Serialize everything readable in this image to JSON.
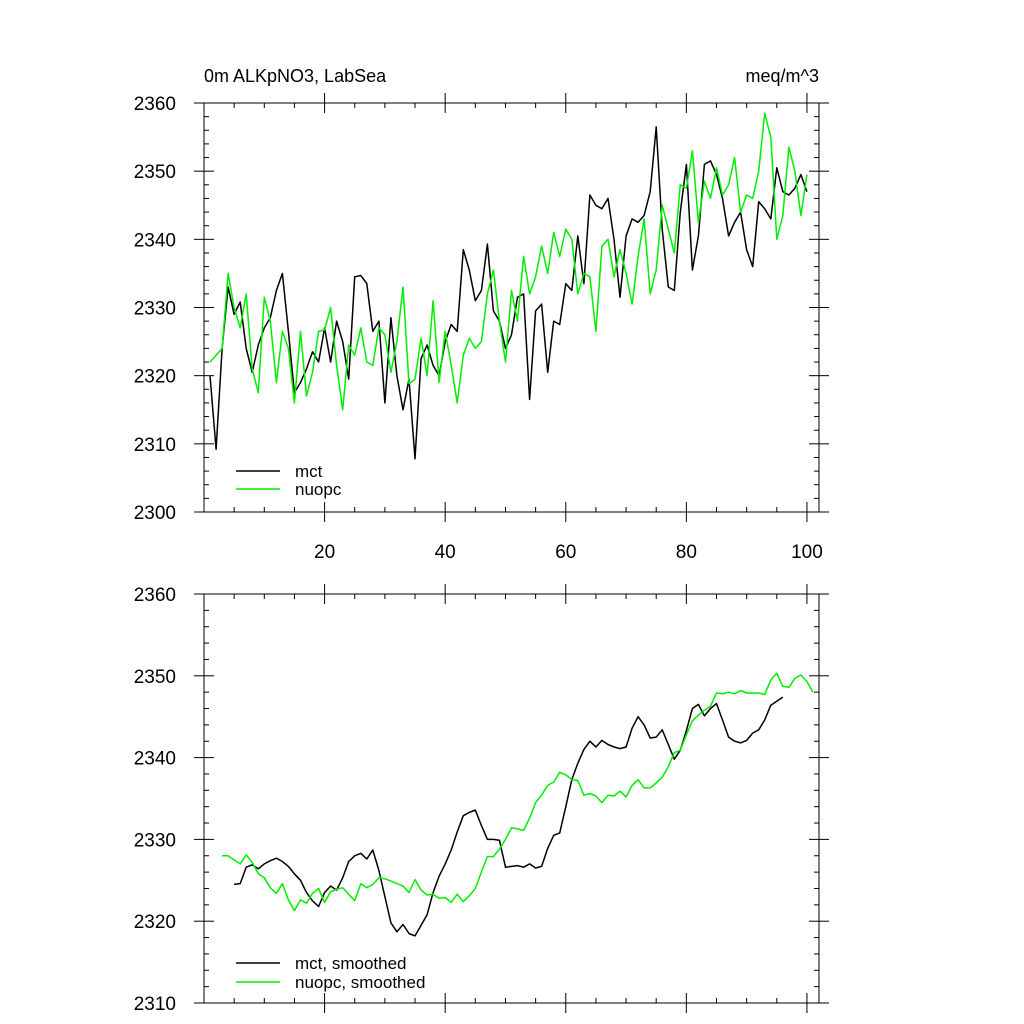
{
  "chart_data": [
    {
      "type": "line",
      "title": "0m ALKpNO3, LabSea",
      "units": "meq/m^3",
      "xlim": [
        0,
        102
      ],
      "ylim": [
        2300,
        2360
      ],
      "xticks": [
        20,
        40,
        60,
        80,
        100
      ],
      "yticks": [
        2300,
        2310,
        2320,
        2330,
        2340,
        2350,
        2360
      ],
      "legend_position": "bottom-left",
      "series": [
        {
          "name": "mct",
          "color": "#000000",
          "x_start": 1,
          "values": [
            2320.0,
            2309.2,
            2324.0,
            2333.0,
            2329.0,
            2330.8,
            2324.0,
            2320.5,
            2324.5,
            2327.0,
            2328.5,
            2332.5,
            2335.0,
            2326.5,
            2317.5,
            2319.0,
            2321.0,
            2323.5,
            2322.0,
            2327.0,
            2322.0,
            2328.0,
            2325.0,
            2319.5,
            2334.5,
            2334.7,
            2333.5,
            2326.5,
            2328.0,
            2316.0,
            2328.5,
            2320.0,
            2315.0,
            2319.5,
            2307.8,
            2322.5,
            2324.5,
            2321.5,
            2320.0,
            2325.0,
            2327.5,
            2326.5,
            2338.5,
            2335.5,
            2331.0,
            2332.5,
            2339.3,
            2329.5,
            2328.0,
            2324.0,
            2326.0,
            2331.5,
            2332.0,
            2316.5,
            2329.5,
            2330.5,
            2320.5,
            2328.0,
            2327.5,
            2333.5,
            2332.5,
            2340.5,
            2333.5,
            2346.5,
            2345.0,
            2344.5,
            2346.0,
            2340.0,
            2331.5,
            2340.5,
            2343.0,
            2342.5,
            2343.5,
            2347.0,
            2356.5,
            2341.5,
            2333.0,
            2332.5,
            2344.0,
            2351.0,
            2335.5,
            2340.5,
            2351.0,
            2351.5,
            2349.5,
            2346.0,
            2340.5,
            2342.5,
            2344.0,
            2338.5,
            2336.0,
            2345.5,
            2344.5,
            2343.0,
            2350.5,
            2347.0,
            2346.5,
            2347.5,
            2349.5,
            2347.0
          ]
        },
        {
          "name": "nuopc",
          "color": "#00ee00",
          "x_start": 1,
          "values": [
            2322.0,
            2323.0,
            2324.0,
            2335.0,
            2330.0,
            2327.0,
            2332.0,
            2321.0,
            2317.5,
            2331.5,
            2328.0,
            2319.0,
            2326.5,
            2324.0,
            2316.0,
            2326.5,
            2317.0,
            2320.5,
            2326.5,
            2326.7,
            2330.0,
            2321.5,
            2315.0,
            2324.5,
            2323.0,
            2327.0,
            2322.0,
            2321.5,
            2327.0,
            2326.0,
            2320.5,
            2325.0,
            2333.0,
            2318.8,
            2319.5,
            2325.5,
            2320.0,
            2331.0,
            2319.0,
            2326.5,
            2321.5,
            2316.0,
            2323.0,
            2325.5,
            2324.0,
            2325.0,
            2332.0,
            2335.5,
            2328.0,
            2322.0,
            2332.5,
            2328.0,
            2337.5,
            2332.0,
            2334.5,
            2339.0,
            2335.0,
            2341.0,
            2337.5,
            2341.5,
            2340.0,
            2332.0,
            2335.0,
            2334.5,
            2326.5,
            2339.0,
            2340.0,
            2334.5,
            2338.5,
            2335.0,
            2330.5,
            2337.5,
            2343.0,
            2332.0,
            2335.5,
            2345.0,
            2341.5,
            2338.0,
            2348.0,
            2347.5,
            2353.0,
            2342.5,
            2348.5,
            2346.0,
            2350.5,
            2346.5,
            2348.0,
            2352.0,
            2344.0,
            2346.5,
            2346.0,
            2350.0,
            2358.5,
            2355.0,
            2340.0,
            2343.5,
            2353.5,
            2350.0,
            2343.5,
            2349.5
          ]
        }
      ]
    },
    {
      "type": "line",
      "xlim": [
        0,
        102
      ],
      "ylim": [
        2310,
        2360
      ],
      "xticks": [
        20,
        40,
        60,
        80,
        100
      ],
      "yticks": [
        2310,
        2320,
        2330,
        2340,
        2350,
        2360
      ],
      "legend_position": "bottom-left",
      "series": [
        {
          "name": "mct, smoothed",
          "color": "#000000",
          "x_start": 5,
          "values": [
            2324.5,
            2324.6,
            2326.6,
            2326.9,
            2326.4,
            2327.0,
            2327.4,
            2327.7,
            2327.3,
            2326.7,
            2325.8,
            2325.0,
            2323.5,
            2322.5,
            2321.8,
            2323.5,
            2324.3,
            2323.8,
            2325.3,
            2327.3,
            2328.0,
            2328.3,
            2327.6,
            2328.7,
            2326.2,
            2323.0,
            2319.8,
            2318.7,
            2319.6,
            2318.5,
            2318.2,
            2319.5,
            2320.8,
            2323.5,
            2325.5,
            2327.0,
            2328.7,
            2330.9,
            2332.9,
            2333.3,
            2333.6,
            2331.7,
            2330.0,
            2330.0,
            2329.9,
            2326.6,
            2326.7,
            2326.8,
            2326.6,
            2327.0,
            2326.5,
            2326.7,
            2328.9,
            2330.5,
            2330.8,
            2334.0,
            2337.3,
            2339.3,
            2341.0,
            2342.0,
            2341.3,
            2342.1,
            2341.6,
            2341.3,
            2341.1,
            2341.3,
            2343.6,
            2345.0,
            2344.0,
            2342.4,
            2342.5,
            2343.4,
            2341.6,
            2339.8,
            2340.9,
            2343.3,
            2346.0,
            2346.5,
            2345.1,
            2346.0,
            2346.6,
            2344.6,
            2342.5,
            2342.0,
            2341.8,
            2342.1,
            2343.0,
            2343.4,
            2344.6,
            2346.4,
            2346.9,
            2347.4
          ]
        },
        {
          "name": "nuopc, smoothed",
          "color": "#00ee00",
          "x_start": 3,
          "values": [
            2328.0,
            2328.0,
            2327.5,
            2327.0,
            2328.1,
            2327.2,
            2325.8,
            2325.3,
            2324.1,
            2323.4,
            2324.6,
            2322.6,
            2321.3,
            2322.6,
            2322.2,
            2323.4,
            2324.0,
            2322.3,
            2323.6,
            2323.9,
            2324.1,
            2323.3,
            2322.5,
            2324.6,
            2324.1,
            2324.5,
            2325.3,
            2325.2,
            2324.9,
            2324.6,
            2324.3,
            2323.5,
            2325.1,
            2323.8,
            2323.2,
            2323.3,
            2322.8,
            2322.9,
            2322.3,
            2323.3,
            2322.4,
            2323.1,
            2324.0,
            2326.0,
            2327.9,
            2327.9,
            2328.8,
            2330.0,
            2331.4,
            2331.3,
            2331.1,
            2332.6,
            2334.5,
            2335.4,
            2336.6,
            2337.0,
            2338.2,
            2337.9,
            2337.3,
            2337.2,
            2335.4,
            2335.6,
            2335.3,
            2334.5,
            2335.4,
            2335.3,
            2335.9,
            2335.2,
            2336.6,
            2337.3,
            2336.3,
            2336.3,
            2336.9,
            2337.6,
            2338.9,
            2340.6,
            2340.9,
            2342.8,
            2344.5,
            2345.2,
            2345.8,
            2346.3,
            2347.9,
            2347.8,
            2348.0,
            2347.8,
            2348.2,
            2347.9,
            2347.9,
            2347.9,
            2347.7,
            2349.5,
            2350.3,
            2348.7,
            2348.6,
            2349.7,
            2350.1,
            2349.3,
            2348.0
          ]
        }
      ]
    }
  ]
}
